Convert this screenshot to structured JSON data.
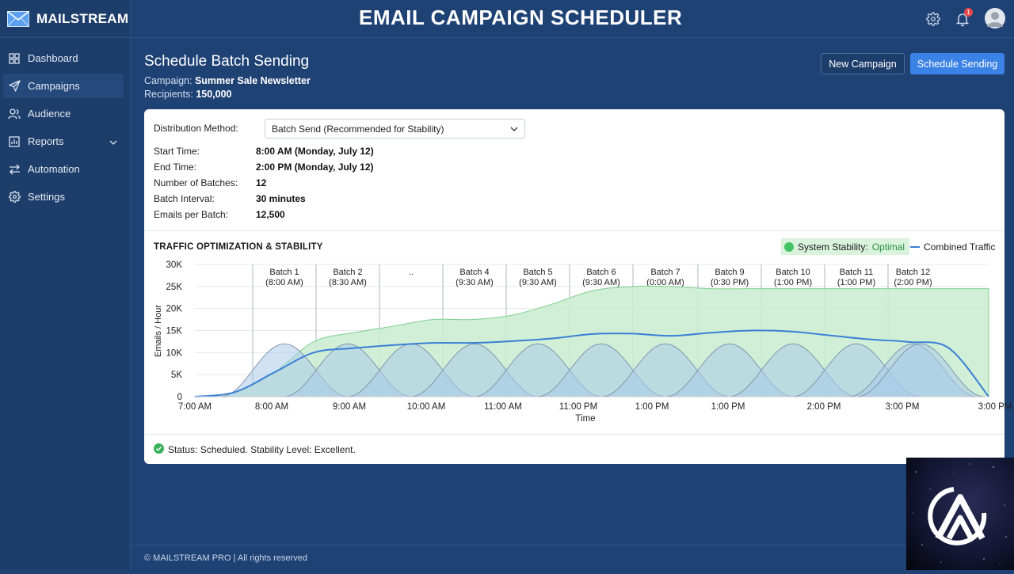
{
  "brand": {
    "name": "MAILSTREAM"
  },
  "header": {
    "title": "EMAIL CAMPAIGN SCHEDULER",
    "notification_count": "1"
  },
  "sidebar": {
    "items": [
      {
        "label": "Dashboard",
        "icon": "grid-icon"
      },
      {
        "label": "Campaigns",
        "icon": "send-icon",
        "active": true
      },
      {
        "label": "Audience",
        "icon": "users-icon"
      },
      {
        "label": "Reports",
        "icon": "bar-chart-icon",
        "expandable": true
      },
      {
        "label": "Automation",
        "icon": "swap-arrows-icon"
      },
      {
        "label": "Settings",
        "icon": "gear-icon"
      }
    ]
  },
  "page": {
    "title": "Schedule Batch Sending",
    "campaign_label": "Campaign:",
    "campaign_value": "Summer Sale Newsletter",
    "recipients_label": "Recipients:",
    "recipients_value": "150,000",
    "new_campaign_label": "New Campaign",
    "schedule_label": "Schedule Sending"
  },
  "form": {
    "distribution_label": "Distribution Method:",
    "distribution_value": "Batch Send (Recommended for Stability)",
    "start_label": "Start Time:",
    "start_value": "8:00 AM (Monday, July 12)",
    "end_label": "End Time:",
    "end_value": "2:00 PM (Monday, July 12)",
    "batches_label": "Number of Batches:",
    "batches_value": "12",
    "interval_label": "Batch Interval:",
    "interval_value": "30 minutes",
    "per_batch_label": "Emails per Batch:",
    "per_batch_value": "12,500"
  },
  "chart": {
    "title": "TRAFFIC OPTIMIZATION & STABILITY",
    "legend_stability_label": "System Stability:",
    "legend_stability_value": "Optimal",
    "legend_traffic_label": "Combined Traffic"
  },
  "status": {
    "text": "Status: Scheduled. Stability Level: Excellent."
  },
  "footer": {
    "text": "© MAILSTREAM PRO | All rights reserved"
  },
  "colors": {
    "accent": "#3b82e6",
    "stability_fill": "#c9ecd0",
    "stability_line": "#7fce8e",
    "batch_fill": "#a9cbe9",
    "traffic_line": "#3a7fd5",
    "sidebar_bg": "#1d3d6b",
    "page_bg": "#1f4275"
  },
  "chart_data": {
    "type": "area",
    "ylabel": "Emails / Hour",
    "xlabel": "Time",
    "ylim": [
      0,
      30000
    ],
    "y_ticks": [
      "0",
      "5K",
      "10K",
      "15K",
      "20K",
      "25K",
      "30K"
    ],
    "x_ticks": [
      "7:00 AM",
      "8:00 AM",
      "9:00 AM",
      "10:00 AM",
      "11:00 AM",
      "11:00 PM",
      "1:00 PM",
      "1:00 PM",
      "2:00 PM",
      "3:00 PM",
      "3:00 PM"
    ],
    "grid": true,
    "legend_position": "top-right",
    "batch_labels": [
      {
        "name": "Batch 1",
        "time": "(8:00 AM)"
      },
      {
        "name": "Batch 2",
        "time": "(8:30 AM)"
      },
      {
        "name": "..",
        "time": ""
      },
      {
        "name": "Batch 4",
        "time": "(9:30 AM)"
      },
      {
        "name": "Batch 5",
        "time": "(9:30 AM)"
      },
      {
        "name": "Batch 6",
        "time": "(9:30 AM)"
      },
      {
        "name": "Batch 7",
        "time": "(0:00 AM)"
      },
      {
        "name": "Batch 9",
        "time": "(0:30 PM)"
      },
      {
        "name": "Batch 10",
        "time": "(1:00 PM)"
      },
      {
        "name": "Batch 11",
        "time": "(1:00 PM)"
      },
      {
        "name": "Batch 12",
        "time": "(2:00 PM)"
      }
    ],
    "series": [
      {
        "name": "System Stability",
        "type": "area",
        "values": [
          0,
          1000,
          5500,
          12500,
          14500,
          16000,
          17500,
          17500,
          18500,
          21000,
          24000,
          25000,
          25000,
          24500,
          24500,
          24500,
          24500,
          24500,
          24500,
          24500,
          24500
        ]
      },
      {
        "name": "Combined Traffic",
        "type": "line",
        "values": [
          0,
          1000,
          5500,
          10000,
          11000,
          11700,
          12200,
          12200,
          12600,
          13200,
          14200,
          14300,
          13800,
          14500,
          15000,
          14800,
          13900,
          13000,
          12400,
          11000,
          0
        ]
      },
      {
        "name": "Batch volume",
        "type": "area",
        "peak": 12000
      }
    ]
  }
}
